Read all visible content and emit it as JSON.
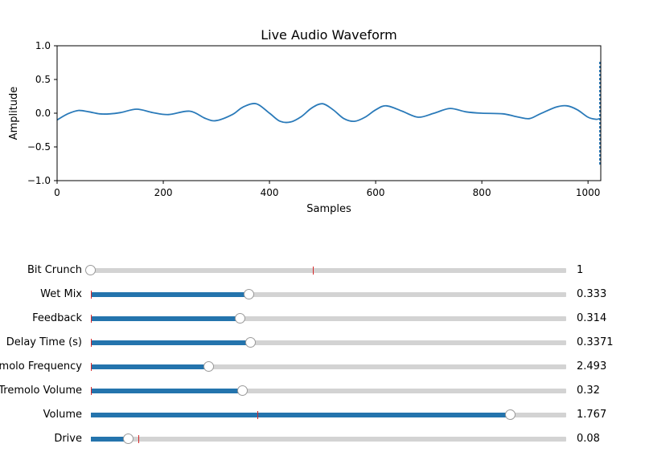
{
  "chart_data": {
    "type": "line",
    "title": "Live Audio Waveform",
    "xlabel": "Samples",
    "ylabel": "Amplitude",
    "xlim": [
      0,
      1024
    ],
    "ylim": [
      -1.0,
      1.0
    ],
    "x_ticks": [
      0,
      200,
      400,
      600,
      800,
      1000
    ],
    "x_tick_labels": [
      "0",
      "200",
      "400",
      "600",
      "800",
      "1000"
    ],
    "y_ticks": [
      1.0,
      0.5,
      0.0,
      -0.5,
      -1.0
    ],
    "y_tick_labels": [
      "1.0",
      "0.5",
      "0.0",
      "−0.5",
      "−1.0"
    ],
    "line_color": "#2a7ab9",
    "series": [
      {
        "x": [
          0,
          20,
          40,
          60,
          80,
          100,
          120,
          150,
          180,
          210,
          250,
          280,
          300,
          330,
          350,
          375,
          400,
          420,
          440,
          460,
          480,
          500,
          520,
          540,
          560,
          580,
          600,
          620,
          650,
          680,
          710,
          740,
          770,
          800,
          840,
          870,
          890,
          910,
          940,
          960,
          980,
          1000,
          1015,
          1022
        ],
        "y": [
          -0.1,
          -0.01,
          0.04,
          0.02,
          -0.01,
          -0.01,
          0.01,
          0.06,
          0.01,
          -0.02,
          0.03,
          -0.08,
          -0.11,
          -0.02,
          0.09,
          0.14,
          0.0,
          -0.12,
          -0.13,
          -0.05,
          0.08,
          0.14,
          0.05,
          -0.08,
          -0.12,
          -0.06,
          0.05,
          0.11,
          0.03,
          -0.06,
          0.0,
          0.07,
          0.02,
          0.0,
          -0.01,
          -0.06,
          -0.08,
          -0.01,
          0.09,
          0.11,
          0.05,
          -0.06,
          -0.09,
          -0.08
        ]
      }
    ]
  },
  "sliders": [
    {
      "label": "Bit Crunch",
      "value_text": "1",
      "min": 1,
      "max": 16,
      "value": 1,
      "init": 8
    },
    {
      "label": "Wet Mix",
      "value_text": "0.333",
      "min": 0,
      "max": 1,
      "value": 0.333,
      "init": 0
    },
    {
      "label": "Feedback",
      "value_text": "0.314",
      "min": 0,
      "max": 1,
      "value": 0.314,
      "init": 0
    },
    {
      "label": "Delay Time (s)",
      "value_text": "0.3371",
      "min": 0,
      "max": 1,
      "value": 0.3371,
      "init": 0
    },
    {
      "label": "Tremolo Frequency",
      "value_text": "2.493",
      "min": 0,
      "max": 10,
      "value": 2.493,
      "init": 0
    },
    {
      "label": "Tremolo Volume",
      "value_text": "0.32",
      "min": 0,
      "max": 1,
      "value": 0.32,
      "init": 0
    },
    {
      "label": "Volume",
      "value_text": "1.767",
      "min": 0,
      "max": 2,
      "value": 1.767,
      "init": 0.7
    },
    {
      "label": "Drive",
      "value_text": "0.08",
      "min": 0,
      "max": 1,
      "value": 0.08,
      "init": 0.1
    }
  ]
}
